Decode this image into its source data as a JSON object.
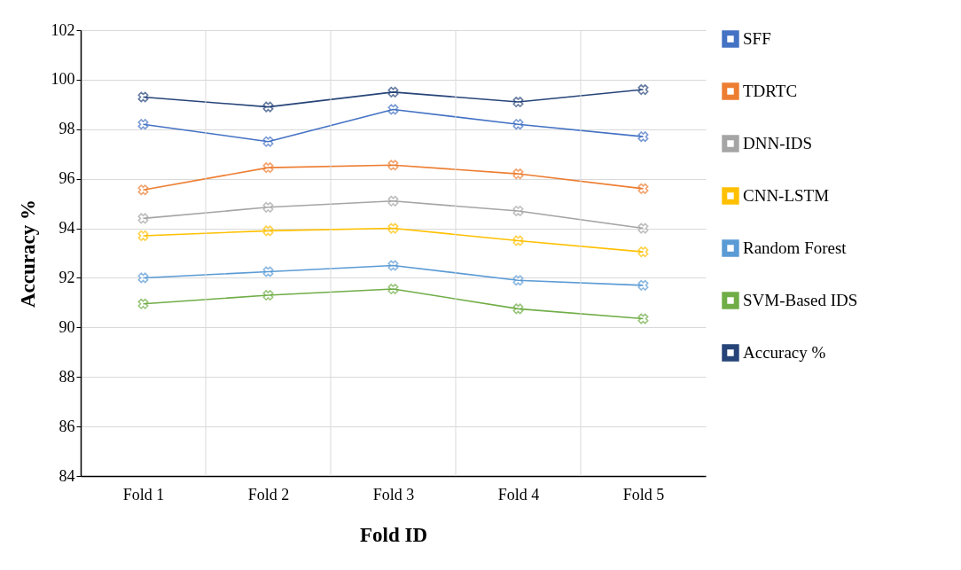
{
  "chart_data": {
    "type": "line",
    "xlabel": "Fold ID",
    "ylabel": "Accuracy %",
    "categories": [
      "Fold 1",
      "Fold 2",
      "Fold 3",
      "Fold 4",
      "Fold 5"
    ],
    "series": [
      {
        "name": "SFF",
        "color": "#4472c4",
        "values": [
          98.2,
          97.5,
          98.8,
          98.2,
          97.7
        ]
      },
      {
        "name": "TDRTC",
        "color": "#ed7d31",
        "values": [
          95.55,
          96.45,
          96.55,
          96.2,
          95.6
        ]
      },
      {
        "name": "DNN-IDS",
        "color": "#a5a5a5",
        "values": [
          94.4,
          94.85,
          95.1,
          94.7,
          94.0
        ]
      },
      {
        "name": "CNN-LSTM",
        "color": "#ffc000",
        "values": [
          93.7,
          93.9,
          94.0,
          93.5,
          93.05
        ]
      },
      {
        "name": "Random Forest",
        "color": "#5b9bd5",
        "values": [
          92.0,
          92.25,
          92.5,
          91.9,
          91.7
        ]
      },
      {
        "name": "SVM-Based IDS",
        "color": "#70ad47",
        "values": [
          90.95,
          91.3,
          91.55,
          90.75,
          90.35
        ]
      },
      {
        "name": "Accuracy %",
        "color": "#264478",
        "values": [
          99.3,
          98.9,
          99.5,
          99.1,
          99.6
        ]
      }
    ],
    "ylim": [
      84,
      102
    ],
    "yticks": [
      84,
      86,
      88,
      90,
      92,
      94,
      96,
      98,
      100,
      102
    ],
    "grid": true,
    "legend": "right",
    "marker": "cross",
    "line_style": "solid"
  }
}
